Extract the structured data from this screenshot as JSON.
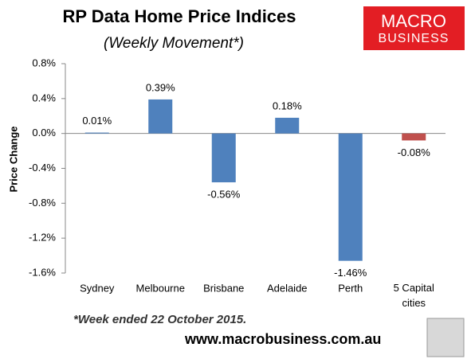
{
  "chart_data": {
    "type": "bar",
    "title": "RP Data Home Price Indices",
    "subtitle": "(Weekly Movement*)",
    "y_label": "Price Change",
    "categories": [
      "Sydney",
      "Melbourne",
      "Brisbane",
      "Adelaide",
      "Perth",
      "5 Capital cities"
    ],
    "values": [
      0.01,
      0.39,
      -0.56,
      0.18,
      -1.46,
      -0.08
    ],
    "value_labels": [
      "0.01%",
      "0.39%",
      "-0.56%",
      "0.18%",
      "-1.46%",
      "-0.08%"
    ],
    "colors": [
      "#4f81bd",
      "#4f81bd",
      "#4f81bd",
      "#4f81bd",
      "#4f81bd",
      "#c0504d"
    ],
    "ylim": [
      -1.6,
      0.8
    ],
    "yticks": [
      {
        "value": -1.6,
        "label": "-1.6%"
      },
      {
        "value": -1.2,
        "label": "-1.2%"
      },
      {
        "value": -0.8,
        "label": "-0.8%"
      },
      {
        "value": -0.4,
        "label": "-0.4%"
      },
      {
        "value": 0,
        "label": "0.0%"
      },
      {
        "value": 0.4,
        "label": "0.4%"
      },
      {
        "value": 0.8,
        "label": "0.8%"
      }
    ],
    "grid": false,
    "footnote": "*Week ended 22 October 2015.",
    "source": "www.macrobusiness.com.au"
  },
  "logo": {
    "line1": "MACRO",
    "line2": "BUSINESS"
  }
}
